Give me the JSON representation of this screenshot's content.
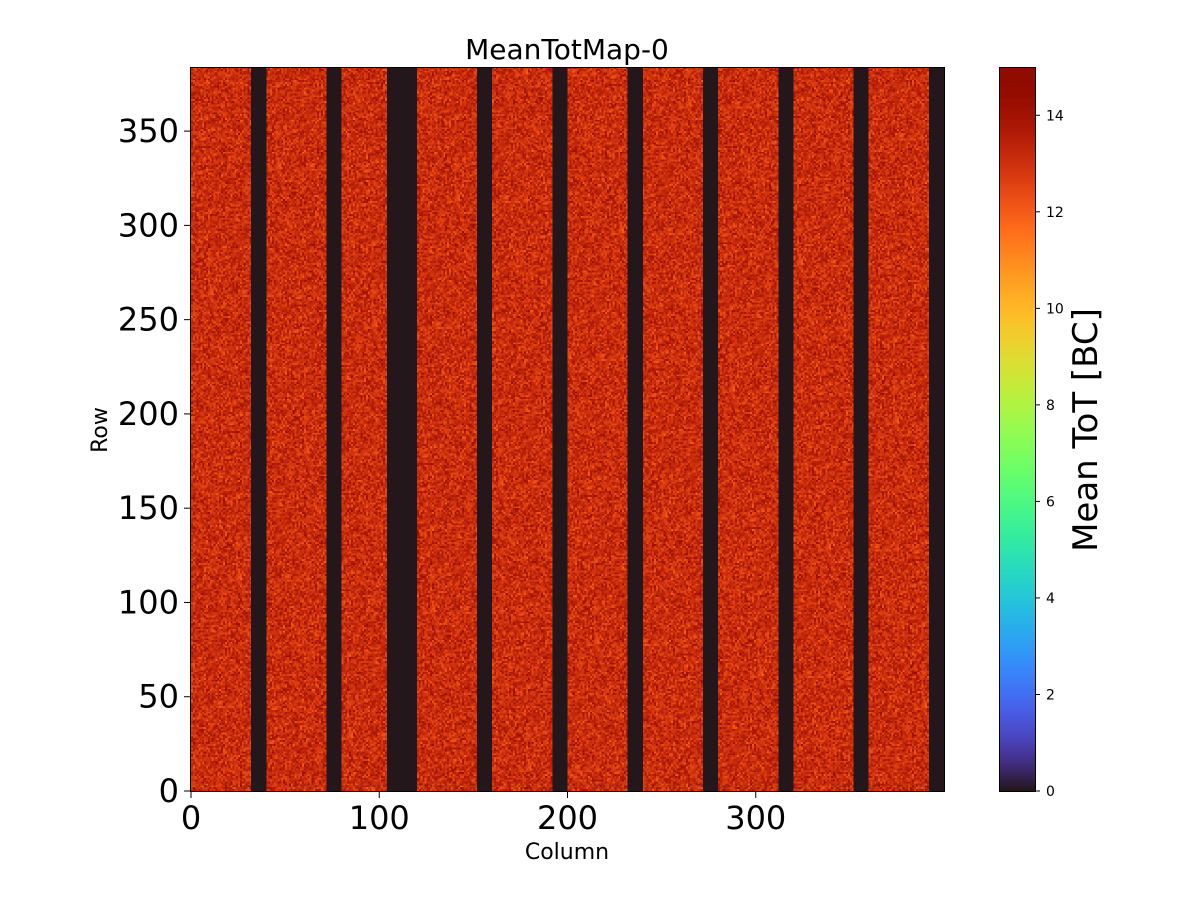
{
  "chart_data": {
    "type": "heatmap",
    "title": "MeanTotMap-0",
    "xlabel": "Column",
    "ylabel": "Row",
    "xlim": [
      0,
      400
    ],
    "ylim": [
      0,
      384
    ],
    "x_ticks": [
      0,
      100,
      200,
      300
    ],
    "y_ticks": [
      0,
      50,
      100,
      150,
      200,
      250,
      300,
      350
    ],
    "colorbar": {
      "label": "Mean ToT [BC]",
      "range": [
        0,
        15
      ],
      "ticks": [
        0,
        2,
        4,
        6,
        8,
        10,
        12,
        14
      ],
      "colormap": "turbo"
    },
    "typical_value_range": [
      11.5,
      14.5
    ],
    "dead_column_bands": [
      {
        "start": 32,
        "end": 40,
        "value": 0
      },
      {
        "start": 72,
        "end": 80,
        "value": 0
      },
      {
        "start": 104,
        "end": 120,
        "value": 0
      },
      {
        "start": 152,
        "end": 160,
        "value": 0
      },
      {
        "start": 192,
        "end": 200,
        "value": 0
      },
      {
        "start": 232,
        "end": 240,
        "value": 0
      },
      {
        "start": 272,
        "end": 280,
        "value": 0
      },
      {
        "start": 312,
        "end": 320,
        "value": 0
      },
      {
        "start": 352,
        "end": 360,
        "value": 0
      },
      {
        "start": 392,
        "end": 400,
        "value": 0
      }
    ]
  }
}
